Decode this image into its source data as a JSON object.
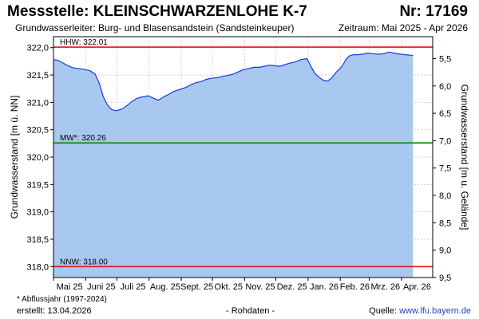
{
  "header": {
    "station": "Messstelle: KLEINSCHWARZENLOHE K-7",
    "number": "Nr: 17169",
    "aquifer": "Grundwasserleiter:  Burg- und Blasensandstein (Sandsteinkeuper)",
    "period": "Zeitraum: Mai 2025 - Apr 2026"
  },
  "footer": {
    "note": "* Abflussjahr (1997-2024)",
    "created": "erstellt:  13.04.2026",
    "raw": "- Rohdaten -",
    "source_label": "Quelle: ",
    "source_link": "www.lfu.bayern.de"
  },
  "colors": {
    "fill": "#a8c8f0",
    "line": "#1a3ad8",
    "hhw": "#e0141e",
    "nnw": "#e0141e",
    "mw": "#0a8a0a",
    "grid": "#c8c8c8"
  },
  "chart_data": {
    "type": "area",
    "ylabel": "Grundwasserstand [m ü. NN]",
    "y2label": "Grundwasserstand [m u. Gelände]",
    "ylim": [
      317.8,
      322.2
    ],
    "yticks": [
      318.0,
      318.5,
      319.0,
      319.5,
      320.0,
      320.5,
      321.0,
      321.5,
      322.0
    ],
    "ytick_labels": [
      "318,0",
      "318,5",
      "319,0",
      "319,5",
      "320,0",
      "320,5",
      "321,0",
      "321,5",
      "322,0"
    ],
    "y2ticks": [
      5.5,
      6.0,
      6.5,
      7.0,
      7.5,
      8.0,
      8.5,
      9.0,
      9.5
    ],
    "y2tick_labels": [
      "5,5",
      "6,0",
      "6,5",
      "7,0",
      "7,5",
      "8,0",
      "8,5",
      "9,0",
      "9,5"
    ],
    "ground_level": 327.3,
    "xlim": [
      "2025-05-01",
      "2026-05-01"
    ],
    "months": [
      "Mai 25",
      "Juni 25",
      "Juli 25",
      "Aug. 25",
      "Sept. 25",
      "Okt. 25",
      "Nov. 25",
      "Dez. 25",
      "Jan. 26",
      "Feb. 26",
      "Mrz. 26",
      "Apr. 26"
    ],
    "reference_lines": [
      {
        "label": "HHW: 322.01",
        "value": 322.01,
        "color": "#e0141e"
      },
      {
        "label": "MW*: 320.26",
        "value": 320.26,
        "color": "#0a8a0a"
      },
      {
        "label": "NNW: 318.00",
        "value": 318.0,
        "color": "#e0141e"
      }
    ],
    "series": [
      {
        "x": [
          "2025-05-01",
          "2025-05-05",
          "2025-05-10",
          "2025-05-15",
          "2025-05-20",
          "2025-05-25",
          "2025-05-31",
          "2025-06-05",
          "2025-06-10",
          "2025-06-14",
          "2025-06-18",
          "2025-06-22",
          "2025-06-26",
          "2025-06-30",
          "2025-07-03",
          "2025-07-06",
          "2025-07-10",
          "2025-07-15",
          "2025-07-20",
          "2025-07-25",
          "2025-07-31",
          "2025-08-05",
          "2025-08-10",
          "2025-08-15",
          "2025-08-20",
          "2025-08-25",
          "2025-08-31",
          "2025-09-05",
          "2025-09-10",
          "2025-09-15",
          "2025-09-20",
          "2025-09-25",
          "2025-09-30",
          "2025-10-05",
          "2025-10-10",
          "2025-10-15",
          "2025-10-20",
          "2025-10-25",
          "2025-10-31",
          "2025-11-05",
          "2025-11-10",
          "2025-11-15",
          "2025-11-20",
          "2025-11-25",
          "2025-11-30",
          "2025-12-05",
          "2025-12-10",
          "2025-12-15",
          "2025-12-20",
          "2025-12-25",
          "2025-12-31",
          "2026-01-04",
          "2026-01-08",
          "2026-01-12",
          "2026-01-16",
          "2026-01-20",
          "2026-01-24",
          "2026-01-28",
          "2026-02-01",
          "2026-02-04",
          "2026-02-07",
          "2026-02-10",
          "2026-02-14",
          "2026-02-18",
          "2026-02-22",
          "2026-02-28",
          "2026-03-05",
          "2026-03-10",
          "2026-03-15",
          "2026-03-20",
          "2026-03-25",
          "2026-03-31",
          "2026-04-05",
          "2026-04-10",
          "2026-04-12"
        ],
        "values": [
          321.78,
          321.77,
          321.72,
          321.67,
          321.63,
          321.62,
          321.6,
          321.58,
          321.52,
          321.35,
          321.1,
          320.95,
          320.87,
          320.85,
          320.86,
          320.88,
          320.93,
          321.01,
          321.07,
          321.1,
          321.12,
          321.08,
          321.04,
          321.1,
          321.15,
          321.2,
          321.24,
          321.27,
          321.32,
          321.36,
          321.38,
          321.42,
          321.44,
          321.45,
          321.47,
          321.49,
          321.51,
          321.55,
          321.6,
          321.62,
          321.64,
          321.64,
          321.66,
          321.68,
          321.67,
          321.66,
          321.69,
          321.72,
          321.74,
          321.78,
          321.8,
          321.65,
          321.52,
          321.45,
          321.4,
          321.39,
          321.45,
          321.55,
          321.62,
          321.7,
          321.8,
          321.85,
          321.87,
          321.87,
          321.88,
          321.9,
          321.89,
          321.88,
          321.89,
          321.92,
          321.9,
          321.88,
          321.87,
          321.86,
          321.86
        ]
      }
    ]
  }
}
